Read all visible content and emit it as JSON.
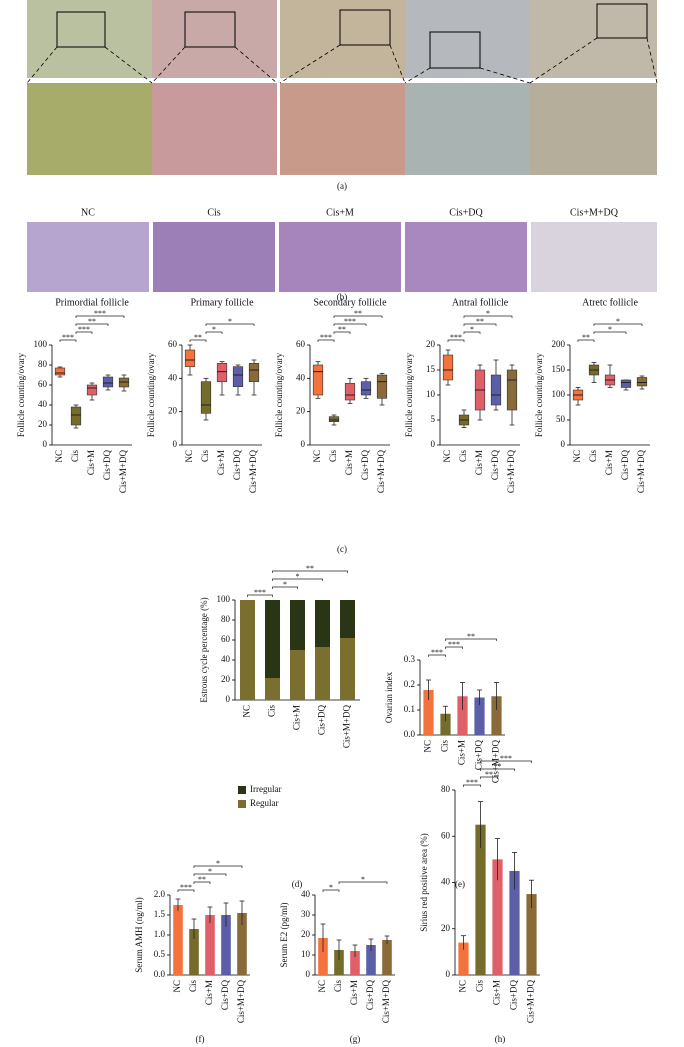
{
  "panel_labels": [
    "(a)",
    "(b)",
    "(c)",
    "(d)",
    "(e)",
    "(f)",
    "(g)",
    "(h)"
  ],
  "image_labels": [
    "NC",
    "Cis",
    "Cis+M",
    "Cis+DQ",
    "Cis+M+DQ"
  ],
  "chart_data": [
    {
      "type": "box",
      "title": "Primordial follicle",
      "y_label": "Follicle counting/ovary",
      "categories": [
        "NC",
        "Cis",
        "Cis+M",
        "Cis+DQ",
        "Cis+M+DQ"
      ],
      "colors": [
        "#f4733c",
        "#756c2b",
        "#e0606a",
        "#5c5fa8",
        "#8b6a3a"
      ],
      "boxes": [
        {
          "min": 68,
          "q1": 70,
          "median": 72,
          "q3": 77,
          "max": 78
        },
        {
          "min": 17,
          "q1": 20,
          "median": 30,
          "q3": 38,
          "max": 40
        },
        {
          "min": 45,
          "q1": 50,
          "median": 57,
          "q3": 60,
          "max": 62
        },
        {
          "min": 55,
          "q1": 58,
          "median": 62,
          "q3": 68,
          "max": 70
        },
        {
          "min": 54,
          "q1": 58,
          "median": 63,
          "q3": 67,
          "max": 70
        }
      ],
      "ylim": [
        0,
        100
      ],
      "yticks": [
        0,
        20,
        40,
        60,
        80,
        100
      ],
      "comparisons": [
        {
          "label": "***",
          "groups": [
            0,
            1
          ]
        },
        {
          "label": "***",
          "groups": [
            1,
            2
          ]
        },
        {
          "label": "**",
          "groups": [
            1,
            3
          ]
        },
        {
          "label": "***",
          "groups": [
            1,
            4
          ]
        }
      ]
    },
    {
      "type": "box",
      "title": "Primary follicle",
      "y_label": "Follicle counting/ovary",
      "categories": [
        "NC",
        "Cis",
        "Cis+M",
        "Cis+DQ",
        "Cis+M+DQ"
      ],
      "colors": [
        "#f4733c",
        "#756c2b",
        "#e0606a",
        "#5c5fa8",
        "#8b6a3a"
      ],
      "boxes": [
        {
          "min": 42,
          "q1": 47,
          "median": 51,
          "q3": 57,
          "max": 60
        },
        {
          "min": 15,
          "q1": 19,
          "median": 24,
          "q3": 38,
          "max": 40
        },
        {
          "min": 30,
          "q1": 38,
          "median": 44,
          "q3": 49,
          "max": 50
        },
        {
          "min": 30,
          "q1": 35,
          "median": 42,
          "q3": 47,
          "max": 48
        },
        {
          "min": 30,
          "q1": 38,
          "median": 45,
          "q3": 49,
          "max": 51
        }
      ],
      "ylim": [
        0,
        60
      ],
      "yticks": [
        0,
        20,
        40,
        60
      ],
      "comparisons": [
        {
          "label": "**",
          "groups": [
            0,
            1
          ]
        },
        {
          "label": "*",
          "groups": [
            1,
            2
          ]
        },
        {
          "label": "*",
          "groups": [
            1,
            4
          ]
        }
      ]
    },
    {
      "type": "box",
      "title": "Secondary follicle",
      "y_label": "Follicle counting/ovary",
      "categories": [
        "NC",
        "Cis",
        "Cis+M",
        "Cis+DQ",
        "Cis+M+DQ"
      ],
      "colors": [
        "#f4733c",
        "#756c2b",
        "#e0606a",
        "#5c5fa8",
        "#8b6a3a"
      ],
      "boxes": [
        {
          "min": 28,
          "q1": 30,
          "median": 44,
          "q3": 48,
          "max": 50
        },
        {
          "min": 12,
          "q1": 14,
          "median": 15,
          "q3": 17,
          "max": 18
        },
        {
          "min": 25,
          "q1": 27,
          "median": 30,
          "q3": 37,
          "max": 40
        },
        {
          "min": 28,
          "q1": 30,
          "median": 33,
          "q3": 38,
          "max": 40
        },
        {
          "min": 24,
          "q1": 28,
          "median": 38,
          "q3": 42,
          "max": 43
        }
      ],
      "ylim": [
        0,
        60
      ],
      "yticks": [
        0,
        20,
        40,
        60
      ],
      "comparisons": [
        {
          "label": "***",
          "groups": [
            0,
            1
          ]
        },
        {
          "label": "**",
          "groups": [
            1,
            2
          ]
        },
        {
          "label": "***",
          "groups": [
            1,
            3
          ]
        },
        {
          "label": "**",
          "groups": [
            1,
            4
          ]
        }
      ]
    },
    {
      "type": "box",
      "title": "Antral follicle",
      "y_label": "Follicle counting/ovary",
      "categories": [
        "NC",
        "Cis",
        "Cis+M",
        "Cis+DQ",
        "Cis+M+DQ"
      ],
      "colors": [
        "#f4733c",
        "#756c2b",
        "#e0606a",
        "#5c5fa8",
        "#8b6a3a"
      ],
      "boxes": [
        {
          "min": 12,
          "q1": 13,
          "median": 15,
          "q3": 18,
          "max": 19
        },
        {
          "min": 3.5,
          "q1": 4,
          "median": 5,
          "q3": 6,
          "max": 7
        },
        {
          "min": 5,
          "q1": 7,
          "median": 11,
          "q3": 15,
          "max": 16
        },
        {
          "min": 7,
          "q1": 8,
          "median": 10,
          "q3": 14,
          "max": 17
        },
        {
          "min": 4,
          "q1": 7,
          "median": 13,
          "q3": 15,
          "max": 16
        }
      ],
      "ylim": [
        0,
        20
      ],
      "yticks": [
        0,
        5,
        10,
        15,
        20
      ],
      "comparisons": [
        {
          "label": "***",
          "groups": [
            0,
            1
          ]
        },
        {
          "label": "*",
          "groups": [
            1,
            2
          ]
        },
        {
          "label": "**",
          "groups": [
            1,
            3
          ]
        },
        {
          "label": "*",
          "groups": [
            1,
            4
          ]
        }
      ]
    },
    {
      "type": "box",
      "title": "Atretc follicle",
      "y_label": "Follicle counting/ovary",
      "categories": [
        "NC",
        "Cis",
        "Cis+M",
        "Cis+DQ",
        "Cis+M+DQ"
      ],
      "colors": [
        "#f4733c",
        "#756c2b",
        "#e0606a",
        "#5c5fa8",
        "#8b6a3a"
      ],
      "boxes": [
        {
          "min": 80,
          "q1": 90,
          "median": 100,
          "q3": 110,
          "max": 115
        },
        {
          "min": 125,
          "q1": 140,
          "median": 150,
          "q3": 160,
          "max": 165
        },
        {
          "min": 115,
          "q1": 120,
          "median": 130,
          "q3": 140,
          "max": 160
        },
        {
          "min": 110,
          "q1": 115,
          "median": 125,
          "q3": 130,
          "max": 130
        },
        {
          "min": 112,
          "q1": 118,
          "median": 125,
          "q3": 135,
          "max": 138
        }
      ],
      "ylim": [
        0,
        200
      ],
      "yticks": [
        0,
        50,
        100,
        150,
        200
      ],
      "comparisons": [
        {
          "label": "**",
          "groups": [
            0,
            1
          ]
        },
        {
          "label": "*",
          "groups": [
            1,
            3
          ]
        },
        {
          "label": "*",
          "groups": [
            1,
            4
          ]
        }
      ]
    },
    {
      "type": "stacked_bar",
      "y_label": "Estrous cycle percentage (%)",
      "categories": [
        "NC",
        "Cis",
        "Cis+M",
        "Cis+DQ",
        "Cis+M+DQ"
      ],
      "series": [
        {
          "name": "Regular",
          "color": "#7a6f2e",
          "values": [
            100,
            22,
            50,
            53,
            62
          ]
        },
        {
          "name": "Irregular",
          "color": "#2a3516",
          "values": [
            0,
            78,
            50,
            47,
            38
          ]
        }
      ],
      "ylim": [
        0,
        100
      ],
      "yticks": [
        0,
        20,
        40,
        60,
        80,
        100
      ],
      "comparisons": [
        {
          "label": "***",
          "groups": [
            0,
            1
          ]
        },
        {
          "label": "*",
          "groups": [
            1,
            2
          ]
        },
        {
          "label": "*",
          "groups": [
            1,
            3
          ]
        },
        {
          "label": "**",
          "groups": [
            1,
            4
          ]
        }
      ]
    },
    {
      "type": "bar",
      "y_label": "Ovarian index",
      "categories": [
        "NC",
        "Cis",
        "Cis+M",
        "Cis+DQ",
        "Cis+M+DQ"
      ],
      "colors": [
        "#f4733c",
        "#756c2b",
        "#e0606a",
        "#5c5fa8",
        "#8b6a3a"
      ],
      "values": [
        0.18,
        0.085,
        0.155,
        0.15,
        0.155
      ],
      "errors": [
        0.04,
        0.03,
        0.055,
        0.03,
        0.055
      ],
      "ylim": [
        0,
        0.3
      ],
      "yticks": [
        {
          "value": 0,
          "label": "0.0"
        },
        0.1,
        0.2,
        0.3
      ],
      "comparisons": [
        {
          "label": "***",
          "groups": [
            0,
            1
          ]
        },
        {
          "label": "***",
          "groups": [
            1,
            2
          ]
        },
        {
          "label": "**",
          "groups": [
            1,
            4
          ]
        }
      ]
    },
    {
      "type": "bar",
      "y_label": "Serum AMH (ng/ml)",
      "categories": [
        "NC",
        "Cis",
        "Cis+M",
        "Cis+DQ",
        "Cis+M+DQ"
      ],
      "colors": [
        "#f4733c",
        "#756c2b",
        "#e0606a",
        "#5c5fa8",
        "#8b6a3a"
      ],
      "values": [
        1.75,
        1.15,
        1.5,
        1.5,
        1.55
      ],
      "errors": [
        0.15,
        0.25,
        0.2,
        0.3,
        0.3
      ],
      "ylim": [
        0,
        2
      ],
      "yticks": [
        {
          "value": 0,
          "label": "0.0"
        },
        0.5,
        {
          "value": 1,
          "label": "1.0"
        },
        1.5,
        {
          "value": 2,
          "label": "2.0"
        }
      ],
      "comparisons": [
        {
          "label": "***",
          "groups": [
            0,
            1
          ]
        },
        {
          "label": "**",
          "groups": [
            1,
            2
          ]
        },
        {
          "label": "*",
          "groups": [
            1,
            3
          ]
        },
        {
          "label": "*",
          "groups": [
            1,
            4
          ]
        }
      ]
    },
    {
      "type": "bar",
      "y_label": "Serum E2 (pg/ml)",
      "categories": [
        "NC",
        "Cis",
        "Cis+M",
        "Cis+DQ",
        "Cis+M+DQ"
      ],
      "colors": [
        "#f4733c",
        "#756c2b",
        "#e0606a",
        "#5c5fa8",
        "#8b6a3a"
      ],
      "values": [
        18.5,
        12.5,
        12,
        15,
        17.5
      ],
      "errors": [
        7,
        5,
        3,
        3,
        2
      ],
      "ylim": [
        0,
        40
      ],
      "yticks": [
        0,
        10,
        20,
        30,
        40
      ],
      "comparisons": [
        {
          "label": "*",
          "groups": [
            0,
            1
          ]
        },
        {
          "label": "*",
          "groups": [
            1,
            4
          ]
        }
      ]
    },
    {
      "type": "bar",
      "y_label": "Sirius red positive area (%)",
      "categories": [
        "NC",
        "Cis",
        "Cis+M",
        "Cis+DQ",
        "Cis+M+DQ"
      ],
      "colors": [
        "#f4733c",
        "#756c2b",
        "#e0606a",
        "#5c5fa8",
        "#8b6a3a"
      ],
      "values": [
        14,
        65,
        50,
        45,
        35
      ],
      "errors": [
        3,
        10,
        9,
        8,
        6
      ],
      "ylim": [
        0,
        80
      ],
      "yticks": [
        0,
        20,
        40,
        60,
        80
      ],
      "comparisons": [
        {
          "label": "***",
          "groups": [
            0,
            1
          ]
        },
        {
          "label": "**",
          "groups": [
            1,
            2
          ]
        },
        {
          "label": "**",
          "groups": [
            1,
            3
          ]
        },
        {
          "label": "***",
          "groups": [
            1,
            4
          ]
        }
      ]
    }
  ]
}
